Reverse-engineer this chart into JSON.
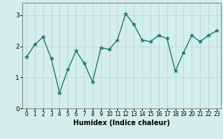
{
  "x": [
    0,
    1,
    2,
    3,
    4,
    5,
    6,
    7,
    8,
    9,
    10,
    11,
    12,
    13,
    14,
    15,
    16,
    17,
    18,
    19,
    20,
    21,
    22,
    23
  ],
  "y": [
    1.65,
    2.05,
    2.3,
    1.6,
    0.5,
    1.25,
    1.85,
    1.45,
    0.85,
    1.95,
    1.9,
    2.2,
    3.05,
    2.7,
    2.2,
    2.15,
    2.35,
    2.25,
    1.2,
    1.8,
    2.35,
    2.15,
    2.35,
    2.5
  ],
  "line_color": "#1a7a6a",
  "marker": "*",
  "marker_size": 4,
  "xlabel": "Humidex (Indice chaleur)",
  "xlim": [
    -0.5,
    23.5
  ],
  "ylim": [
    0,
    3.4
  ],
  "yticks": [
    0,
    1,
    2,
    3
  ],
  "xticks": [
    0,
    1,
    2,
    3,
    4,
    5,
    6,
    7,
    8,
    9,
    10,
    11,
    12,
    13,
    14,
    15,
    16,
    17,
    18,
    19,
    20,
    21,
    22,
    23
  ],
  "bg_color": "#d4eeeb",
  "grid_color": "#b8dbd8",
  "spine_color": "#888888"
}
